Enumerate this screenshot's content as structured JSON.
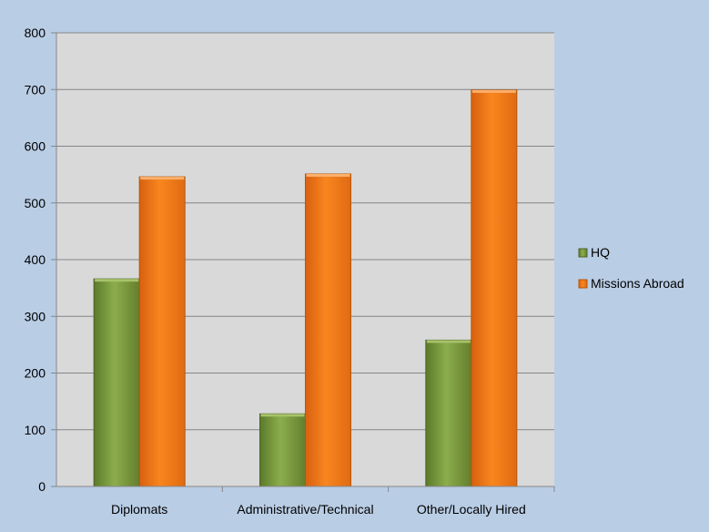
{
  "chart_data": {
    "type": "bar",
    "categories": [
      "Diplomats",
      "Administrative/Technical",
      "Other/Locally Hired"
    ],
    "series": [
      {
        "name": "HQ",
        "values": [
          366,
          128,
          258
        ]
      },
      {
        "name": "Missions Abroad",
        "values": [
          546,
          551,
          699
        ]
      }
    ],
    "ylim": [
      0,
      800
    ],
    "yticks": [
      0,
      100,
      200,
      300,
      400,
      500,
      600,
      700,
      800
    ],
    "grid": true,
    "legend_position": "right",
    "colors": {
      "page_background": "#b9cde5",
      "plot_background": "#d9d9d9",
      "gridline": "#868686",
      "HQ": "#77933c",
      "Missions Abroad": "#f07716"
    }
  }
}
